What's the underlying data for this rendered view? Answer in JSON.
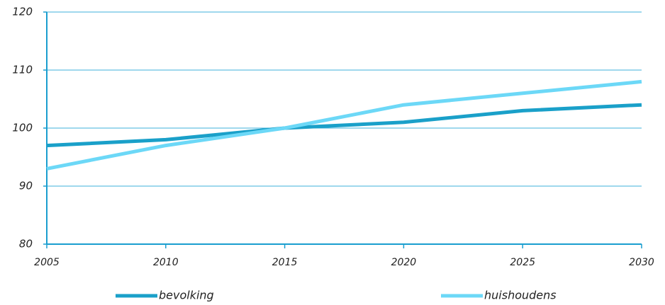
{
  "chart_data": {
    "type": "line",
    "x": [
      2005,
      2010,
      2015,
      2020,
      2025,
      2030
    ],
    "xlim": [
      2005,
      2030
    ],
    "xticks": [
      2005,
      2010,
      2015,
      2020,
      2025,
      2030
    ],
    "ylim": [
      80,
      120
    ],
    "yticks": [
      80,
      90,
      100,
      110,
      120
    ],
    "grid": true,
    "series": [
      {
        "name": "bevolking",
        "color": "#1aa0c9",
        "values": [
          97,
          98,
          100,
          101,
          103,
          104
        ]
      },
      {
        "name": "huishoudens",
        "color": "#6cd8f7",
        "values": [
          93,
          97,
          100,
          104,
          106,
          108
        ]
      }
    ]
  }
}
